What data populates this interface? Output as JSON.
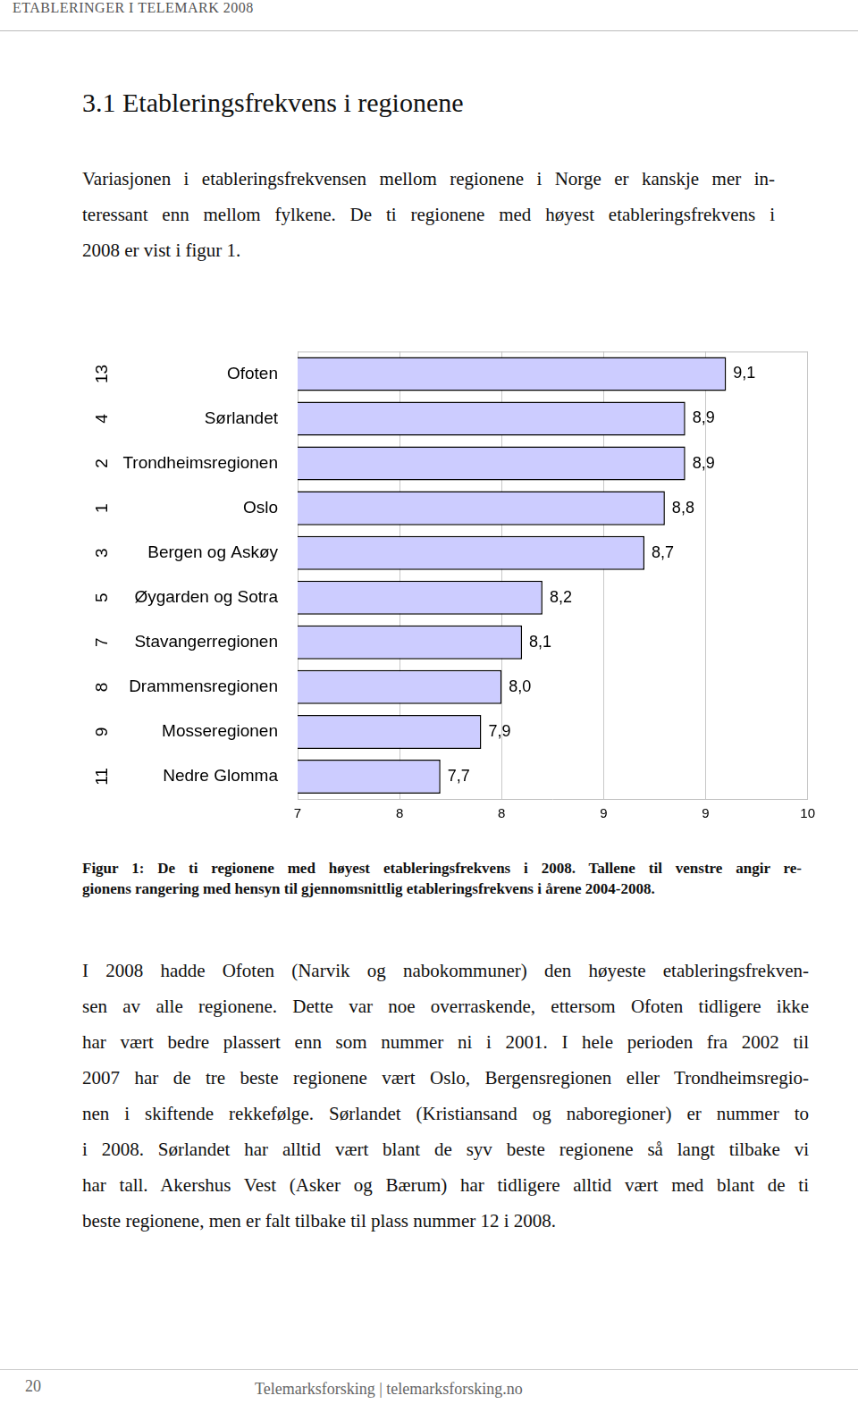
{
  "header": "ETABLERINGER I TELEMARK 2008",
  "heading": "3.1 Etableringsfrekvens i regionene",
  "intro": [
    "Variasjonen i etableringsfrekvensen mellom regionene i Norge er kanskje mer in-",
    "teressant enn mellom fylkene. De ti regionene med høyest etableringsfrekvens i",
    "2008 er vist i figur 1."
  ],
  "chart_data": {
    "type": "bar",
    "orientation": "horizontal",
    "categories": [
      "Ofoten",
      "Sørlandet",
      "Trondheimsregionen",
      "Oslo",
      "Bergen og Askøy",
      "Øygarden og Sotra",
      "Stavangerregionen",
      "Drammensregionen",
      "Mosseregionen",
      "Nedre Glomma"
    ],
    "ranks": [
      13,
      4,
      2,
      1,
      3,
      5,
      7,
      8,
      9,
      11
    ],
    "values": [
      9.1,
      8.9,
      8.9,
      8.8,
      8.7,
      8.2,
      8.1,
      8.0,
      7.9,
      7.7
    ],
    "value_labels": [
      "9,1",
      "8,9",
      "8,9",
      "8,8",
      "8,7",
      "8,2",
      "8,1",
      "8,0",
      "7,9",
      "7,7"
    ],
    "data_labels": true,
    "color": "#ccccff",
    "xlim": [
      7,
      9.5
    ],
    "xticks": [
      {
        "value": 7,
        "label": "7"
      },
      {
        "value": 7.5,
        "label": "8"
      },
      {
        "value": 8,
        "label": "8"
      },
      {
        "value": 8.5,
        "label": "9"
      },
      {
        "value": 9,
        "label": "9"
      },
      {
        "value": 9.5,
        "label": "10"
      }
    ],
    "grid": true
  },
  "caption": [
    "Figur 1: De ti regionene med høyest etableringsfrekvens i 2008. Tallene til venstre angir re-",
    "gionens rangering med hensyn til gjennomsnittlig etableringsfrekvens i årene 2004-2008."
  ],
  "body": [
    "I 2008 hadde Ofoten (Narvik og nabokommuner) den høyeste etableringsfrekven-",
    "sen av alle regionene. Dette var noe overraskende, ettersom Ofoten tidligere ikke",
    "har vært bedre plassert enn som nummer ni i 2001. I hele perioden fra 2002 til",
    "2007 har de tre beste regionene vært Oslo, Bergensregionen eller Trondheimsregio-",
    "nen i skiftende rekkefølge. Sørlandet (Kristiansand og naboregioner) er nummer to",
    "i 2008. Sørlandet har alltid vært blant de syv beste regionene så langt tilbake vi",
    "har tall. Akershus Vest (Asker og Bærum) har tidligere alltid vært med blant de ti",
    "beste regionene, men er falt tilbake til plass nummer 12 i 2008."
  ],
  "footer": {
    "page": "20",
    "text": "Telemarksforsking | telemarksforsking.no"
  }
}
